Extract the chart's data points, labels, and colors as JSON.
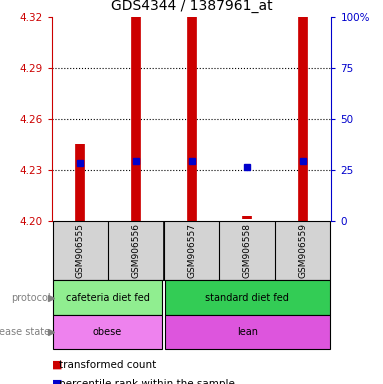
{
  "title": "GDS4344 / 1387961_at",
  "samples": [
    "GSM906555",
    "GSM906556",
    "GSM906557",
    "GSM906558",
    "GSM906559"
  ],
  "bar_bottom": [
    4.2,
    4.2,
    4.2,
    4.201,
    4.2
  ],
  "bar_top": [
    4.245,
    4.32,
    4.32,
    4.203,
    4.32
  ],
  "blue_y": [
    4.234,
    4.235,
    4.235,
    4.232,
    4.235
  ],
  "ylim": [
    4.2,
    4.32
  ],
  "yticks_left": [
    4.2,
    4.23,
    4.26,
    4.29,
    4.32
  ],
  "yticks_right": [
    0,
    25,
    50,
    75,
    100
  ],
  "protocol": [
    {
      "label": "cafeteria diet fed",
      "start": 0,
      "end": 2,
      "color": "#90EE90"
    },
    {
      "label": "standard diet fed",
      "start": 2,
      "end": 5,
      "color": "#33CC55"
    }
  ],
  "disease": [
    {
      "label": "obese",
      "start": 0,
      "end": 2,
      "color": "#EE82EE"
    },
    {
      "label": "lean",
      "start": 2,
      "end": 5,
      "color": "#DD55DD"
    }
  ],
  "bar_color": "#CC0000",
  "blue_color": "#0000CC",
  "left_tick_color": "#CC0000",
  "right_tick_color": "#0000CC",
  "title_fontsize": 10,
  "tick_fontsize": 7.5,
  "sample_fontsize": 6.5,
  "annot_fontsize": 7,
  "legend_fontsize": 7.5
}
